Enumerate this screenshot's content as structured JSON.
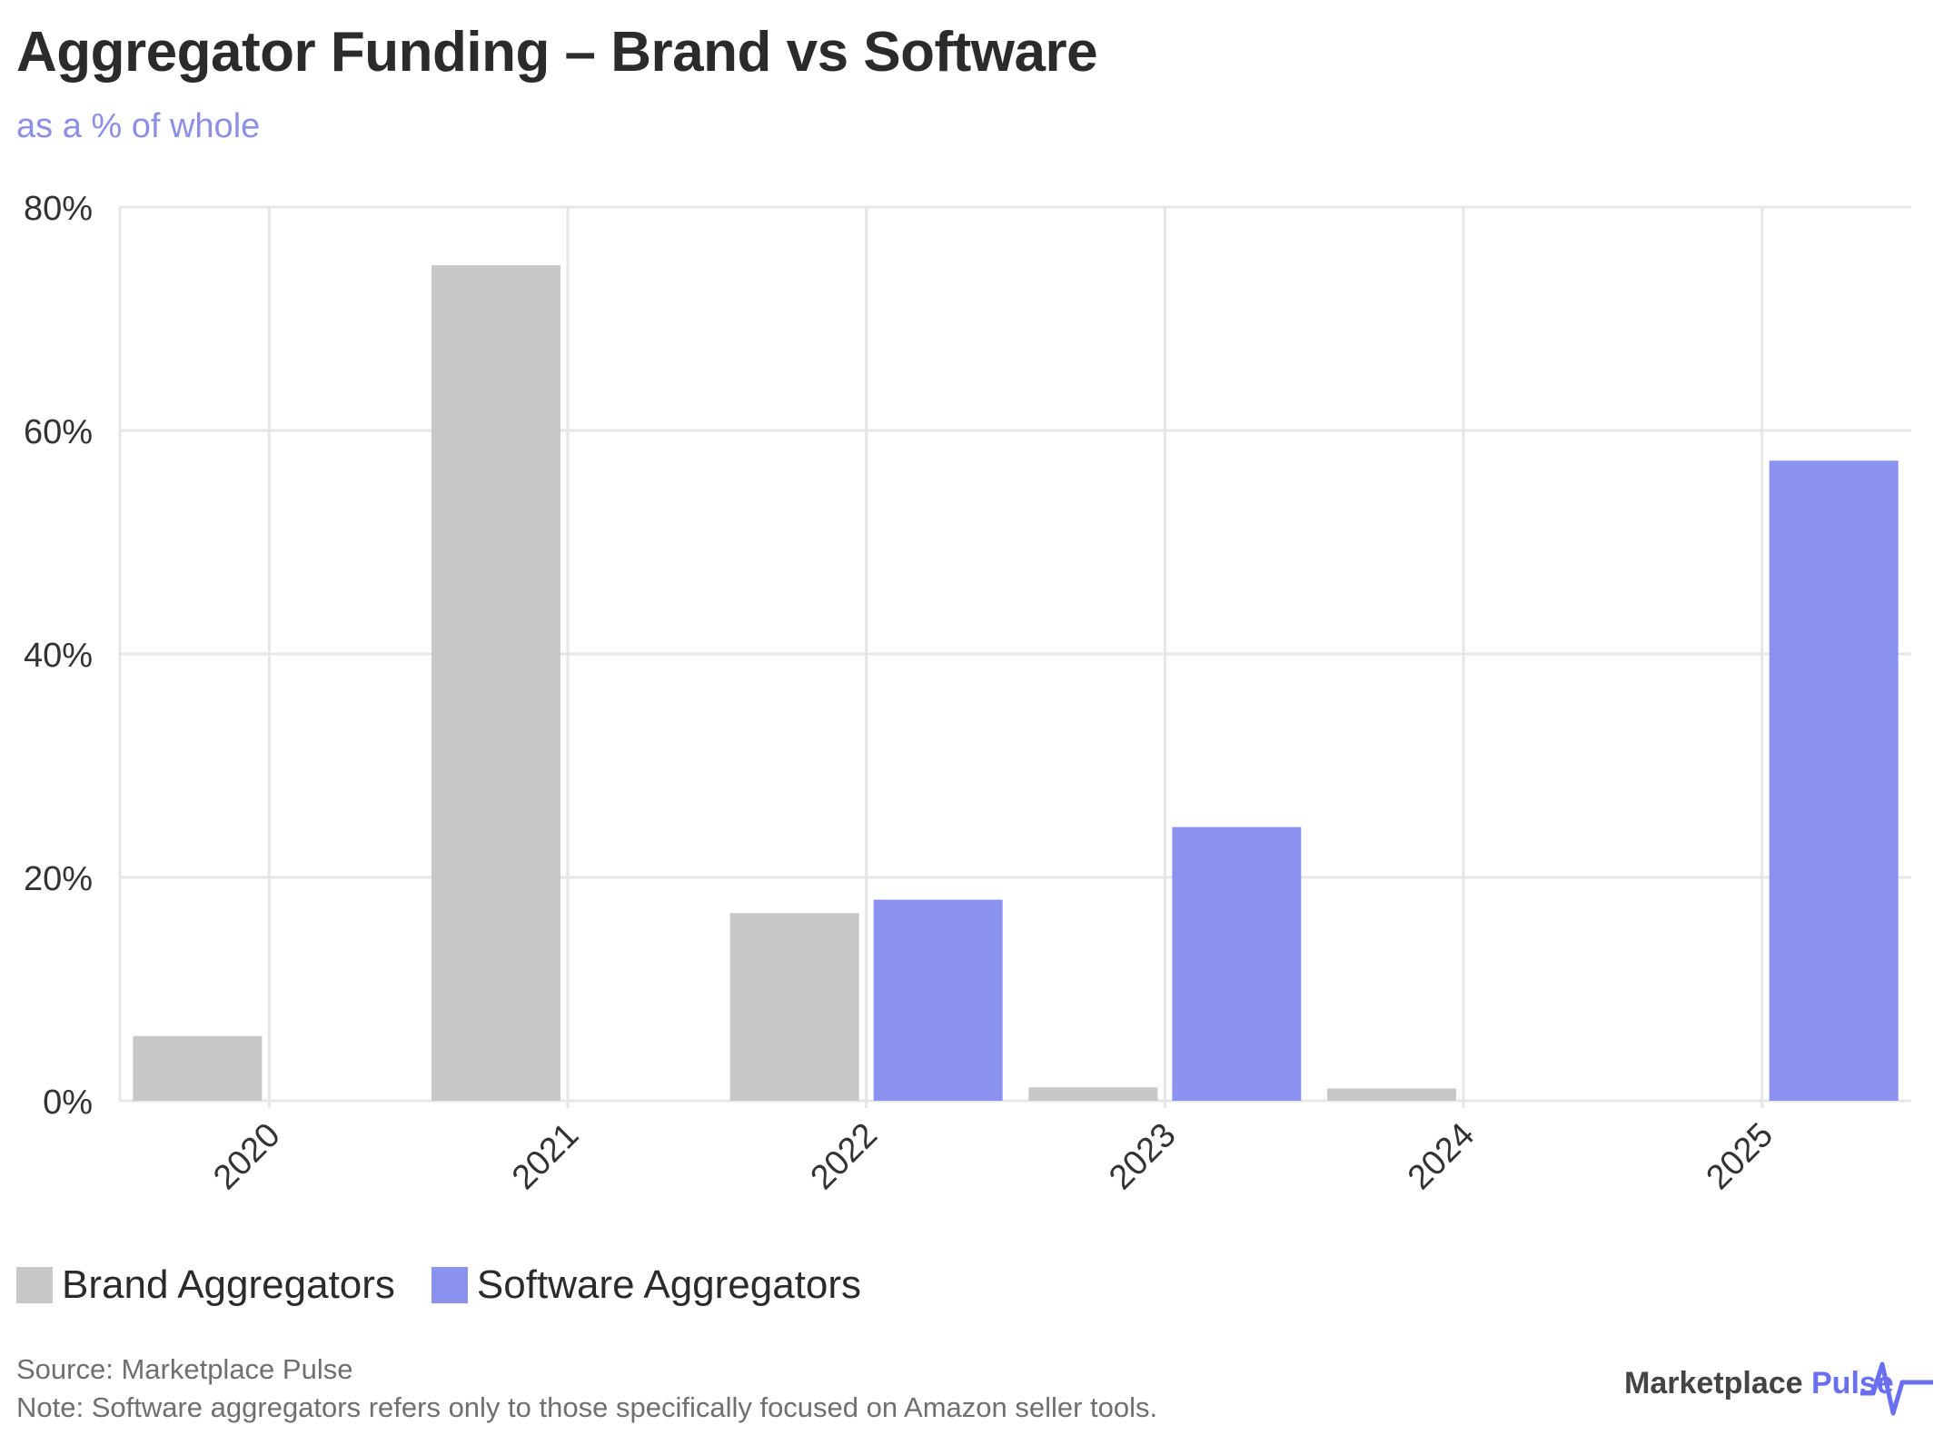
{
  "chart_data": {
    "type": "bar",
    "title": "Aggregator Funding – Brand vs Software",
    "subtitle": "as a % of whole",
    "categories": [
      "2020",
      "2021",
      "2022",
      "2023",
      "2024",
      "2025"
    ],
    "series": [
      {
        "name": "Brand Aggregators",
        "color": "#c8c8c8",
        "values": [
          5.8,
          74.8,
          16.8,
          1.2,
          1.1,
          0
        ]
      },
      {
        "name": "Software Aggregators",
        "color": "#8b91ef",
        "values": [
          0,
          0,
          18.0,
          24.5,
          0,
          57.3
        ]
      }
    ],
    "yticks": [
      "0%",
      "20%",
      "40%",
      "60%",
      "80%"
    ],
    "ylim": [
      0,
      80
    ],
    "grid": true,
    "legend": "bottom-left"
  },
  "footer": {
    "source": "Source: Marketplace Pulse",
    "note": "Note: Software aggregators refers only to those specifically focused on Amazon seller tools."
  },
  "logo": {
    "text_main": "Marketplace",
    "text_accent": "Pulse",
    "icon": "pulse-wave-icon"
  },
  "colors": {
    "title": "#2b2b2b",
    "subtitle": "#8c8fe6",
    "grid": "#e6e6e6"
  }
}
